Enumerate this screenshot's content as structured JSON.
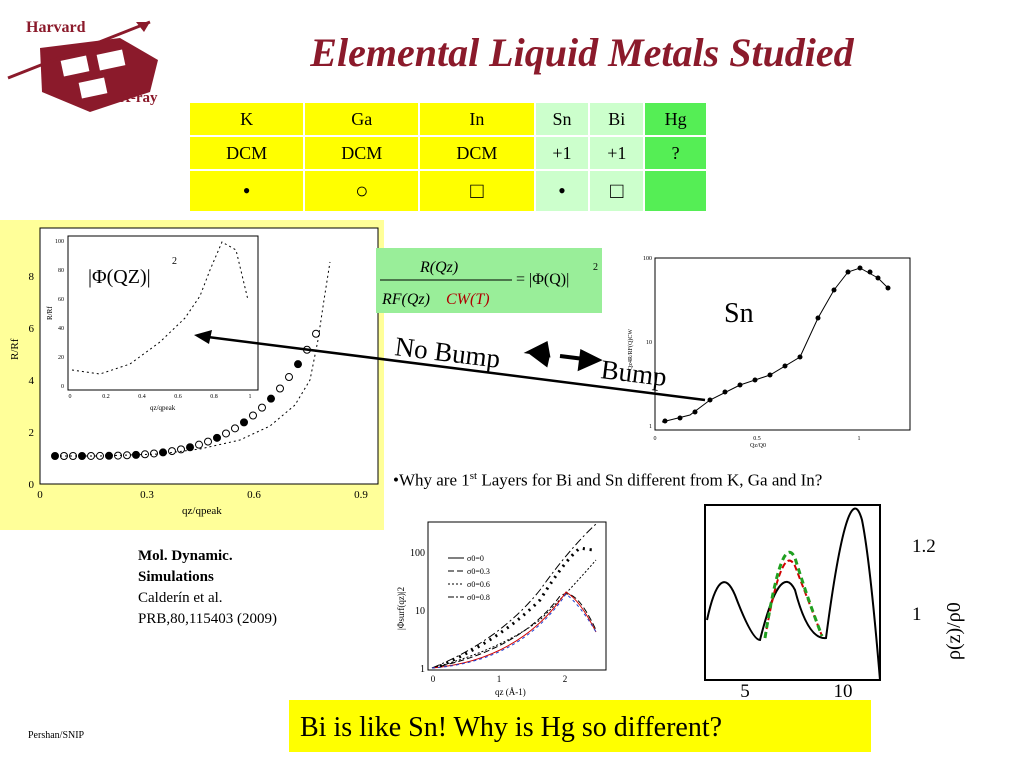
{
  "header": {
    "logo_top": "Harvard",
    "logo_bottom": "X-ray",
    "title": "Elemental Liquid Metals Studied"
  },
  "table": {
    "rows": [
      [
        "K",
        "Ga",
        "In",
        "Sn",
        "Bi",
        "Hg"
      ],
      [
        "DCM",
        "DCM",
        "DCM",
        "+1",
        "+1",
        "?"
      ],
      [
        "•",
        "○",
        "□",
        "•",
        "□"
      ]
    ]
  },
  "left_plot": {
    "y_label": "R/Rf",
    "x_label": "qz/qpeak",
    "yticks": [
      "0",
      "2",
      "4",
      "6",
      "8"
    ],
    "xticks": [
      "0",
      "0.3",
      "0.6",
      "0.9"
    ],
    "inset_formula": "|Φ(QZ)|",
    "inset_power": "2",
    "inset_yticks": [
      "0",
      "20",
      "40",
      "60",
      "80",
      "100"
    ],
    "inset_xticks": [
      "0",
      "0.2",
      "0.4",
      "0.6",
      "0.8",
      "1"
    ],
    "inset_y_label": "R/Rf",
    "inset_x_label": "qz/qpeak"
  },
  "formula": {
    "numerator": "R(Qz)",
    "denominator_a": "RF(Qz)",
    "denominator_b": "CW(T)",
    "right": "= |Φ(Q)|",
    "power": "2"
  },
  "sn_plot": {
    "label": "Sn",
    "xticks": [
      "0",
      "0.5",
      "1"
    ],
    "yticks": [
      "1",
      "10",
      "100"
    ],
    "x_label": "Qz/Q0",
    "y_label": "Qz4R/RF(Q)CW"
  },
  "arrow": {
    "left": "No Bump",
    "right": "Bump"
  },
  "question": {
    "before": "•Why are 1",
    "sup": "st",
    "after": " Layers for Bi and Sn different from K, Ga and In?"
  },
  "citation": {
    "lines": [
      "Mol. Dynamic.",
      "Simulations",
      "Calderín et al.",
      "PRB,80,115403 (2009)"
    ]
  },
  "bottom_left_plot": {
    "y_label": "|Φsurf(qz)|2",
    "x_label": "qz (Å-1)",
    "yticks": [
      "1",
      "10",
      "100"
    ],
    "xticks": [
      "0",
      "1",
      "2"
    ],
    "legend": [
      "σ0=0",
      "σ0=0.3",
      "σ0=0.6",
      "σ0=0.8"
    ]
  },
  "bottom_right_plot": {
    "y_label": "ρ(z)/ρ0",
    "yticks": [
      "1",
      "1.2"
    ],
    "xticks": [
      "5",
      "10"
    ]
  },
  "callout": "Bi is like Sn! Why is Hg so different?",
  "footer": "Pershan/SNIP"
}
